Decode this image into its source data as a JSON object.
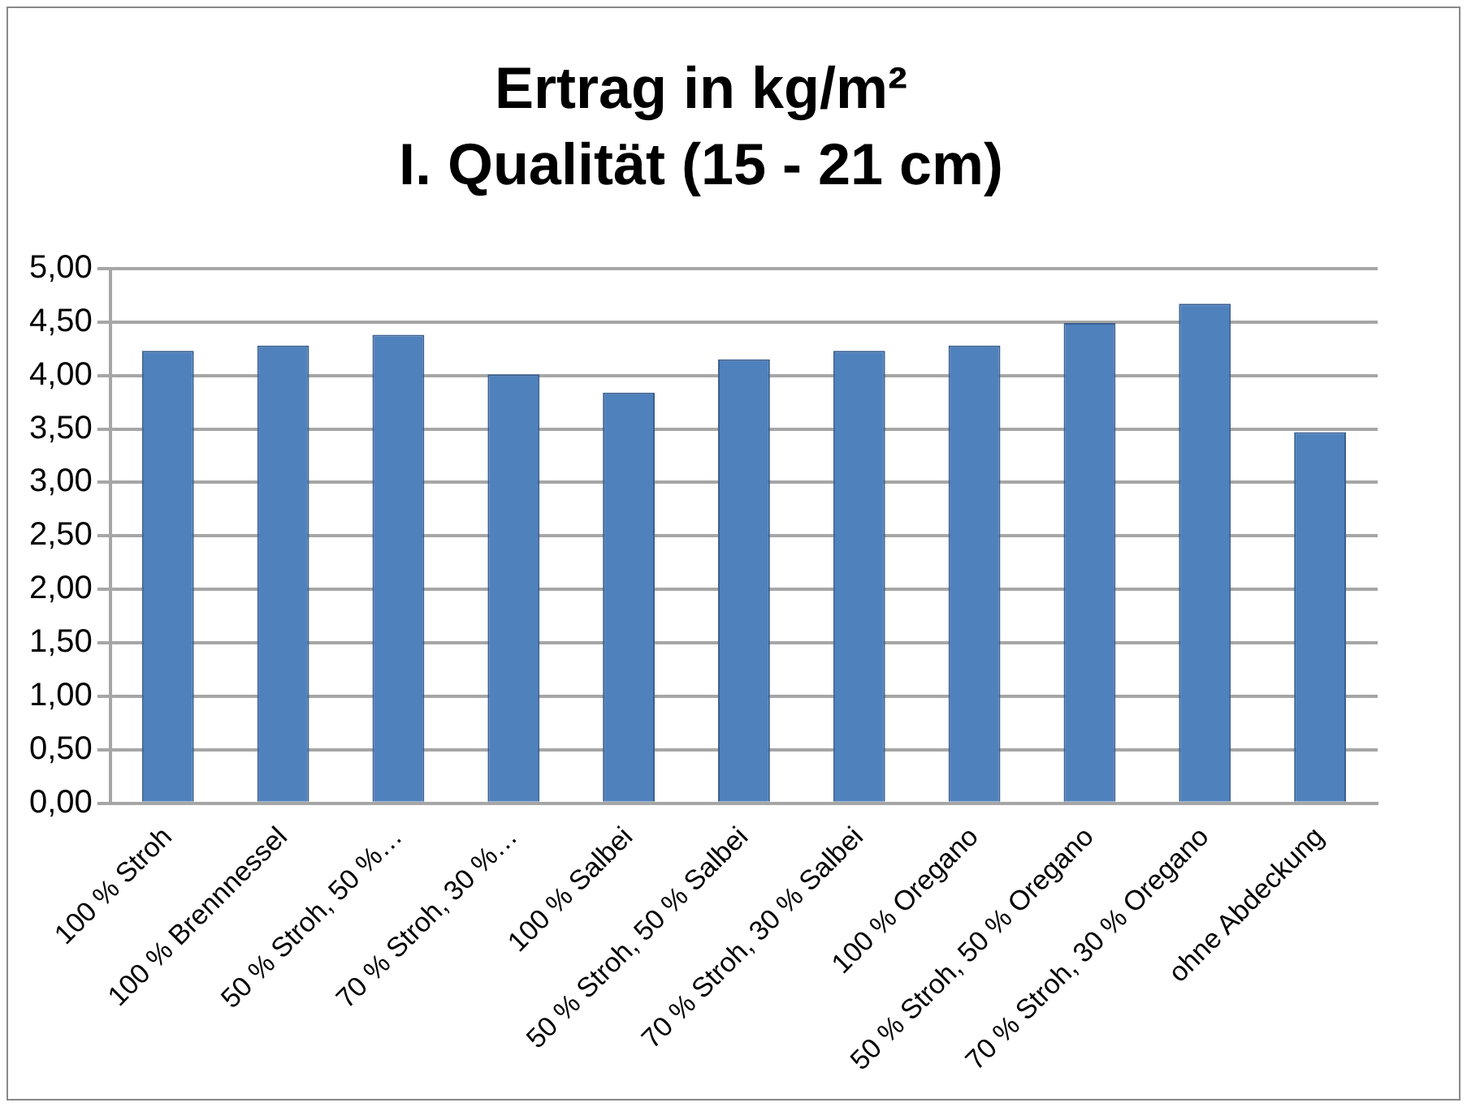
{
  "chart_data": {
    "type": "bar",
    "title": "Ertrag in kg/m²",
    "subtitle": "I. Qualität (15 - 21 cm)",
    "categories": [
      "100 % Stroh",
      "100 % Brennnessel",
      "50 % Stroh, 50 %…",
      "70 % Stroh, 30 %…",
      "100 % Salbei",
      "50 % Stroh, 50 % Salbei",
      "70 % Stroh, 30 % Salbei",
      "100 % Oregano",
      "50 % Stroh, 50 % Oregano",
      "70 % Stroh, 30 % Oregano",
      "ohne Abdeckung"
    ],
    "values": [
      4.23,
      4.28,
      4.38,
      4.01,
      3.84,
      4.15,
      4.23,
      4.28,
      4.49,
      4.67,
      3.47
    ],
    "color": "#4f81bd",
    "ylim": [
      0,
      5
    ],
    "yticks": [
      {
        "value": 0,
        "label": "0,00"
      },
      {
        "value": 0.5,
        "label": "0,50"
      },
      {
        "value": 1,
        "label": "1,00"
      },
      {
        "value": 1.5,
        "label": "1,50"
      },
      {
        "value": 2,
        "label": "2,00"
      },
      {
        "value": 2.5,
        "label": "2,50"
      },
      {
        "value": 3,
        "label": "3,00"
      },
      {
        "value": 3.5,
        "label": "3,50"
      },
      {
        "value": 4,
        "label": "4,00"
      },
      {
        "value": 4.5,
        "label": "4,50"
      },
      {
        "value": 5,
        "label": "5,00"
      }
    ],
    "grid": "y",
    "legend": false
  }
}
